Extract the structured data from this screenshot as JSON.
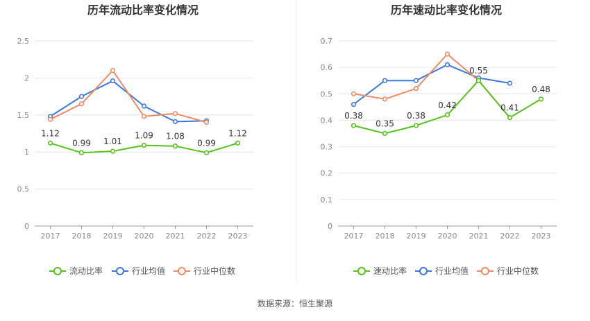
{
  "source": "数据来源：恒生聚源",
  "colors": {
    "primary": "#52c41a",
    "industry_avg": "#3a78e0",
    "industry_median": "#f08a65",
    "grid": "#e6e6e6",
    "axis": "#999999",
    "divider": "#eeeeee"
  },
  "chart_data": [
    {
      "type": "line",
      "title": "历年流动比率变化情况",
      "categories": [
        "2017",
        "2018",
        "2019",
        "2020",
        "2021",
        "2022",
        "2023"
      ],
      "ylim": [
        0,
        2.5
      ],
      "yticks": [
        "0",
        "0.5",
        "1",
        "1.5",
        "2",
        "2.5"
      ],
      "ytick_values": [
        0,
        0.5,
        1,
        1.5,
        2,
        2.5
      ],
      "grid": true,
      "legend": "bottom",
      "series": [
        {
          "name": "流动比率",
          "color": "#52c41a",
          "values": [
            1.12,
            0.99,
            1.01,
            1.09,
            1.08,
            0.99,
            1.12
          ],
          "labels": [
            "1.12",
            "0.99",
            "1.01",
            "1.09",
            "1.08",
            "0.99",
            "1.12"
          ]
        },
        {
          "name": "行业均值",
          "color": "#3a78e0",
          "values": [
            1.48,
            1.75,
            1.96,
            1.62,
            1.41,
            1.42,
            null
          ]
        },
        {
          "name": "行业中位数",
          "color": "#f08a65",
          "values": [
            1.44,
            1.65,
            2.1,
            1.48,
            1.52,
            1.4,
            null
          ]
        }
      ]
    },
    {
      "type": "line",
      "title": "历年速动比率变化情况",
      "categories": [
        "2017",
        "2018",
        "2019",
        "2020",
        "2021",
        "2022",
        "2023"
      ],
      "ylim": [
        0,
        0.7
      ],
      "yticks": [
        "0",
        "0.1",
        "0.2",
        "0.3",
        "0.4",
        "0.5",
        "0.6",
        "0.7"
      ],
      "ytick_values": [
        0,
        0.1,
        0.2,
        0.3,
        0.4,
        0.5,
        0.6,
        0.7
      ],
      "grid": true,
      "legend": "bottom",
      "series": [
        {
          "name": "速动比率",
          "color": "#52c41a",
          "values": [
            0.38,
            0.35,
            0.38,
            0.42,
            0.55,
            0.41,
            0.48
          ],
          "labels": [
            "0.38",
            "0.35",
            "0.38",
            "0.42",
            "0.55",
            "0.41",
            "0.48"
          ]
        },
        {
          "name": "行业均值",
          "color": "#3a78e0",
          "values": [
            0.46,
            0.55,
            0.55,
            0.61,
            0.56,
            0.54,
            null
          ]
        },
        {
          "name": "行业中位数",
          "color": "#f08a65",
          "values": [
            0.5,
            0.48,
            0.52,
            0.65,
            0.55,
            0.41,
            null
          ]
        }
      ]
    }
  ]
}
